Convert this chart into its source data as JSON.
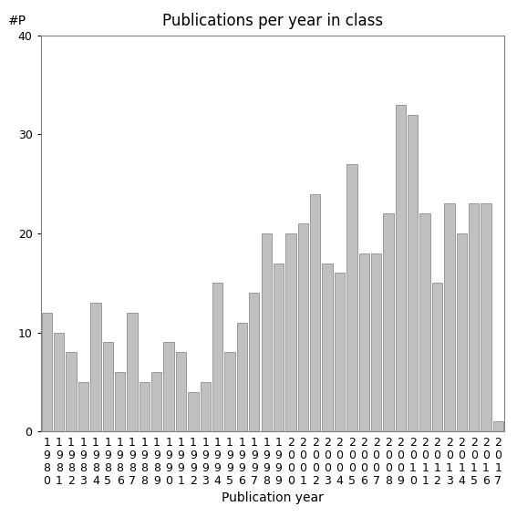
{
  "title": "Publications per year in class",
  "xlabel": "Publication year",
  "ylabel": "#P",
  "years": [
    "1980",
    "1981",
    "1982",
    "1983",
    "1984",
    "1985",
    "1986",
    "1987",
    "1988",
    "1989",
    "1990",
    "1991",
    "1992",
    "1993",
    "1994",
    "1995",
    "1996",
    "1997",
    "1998",
    "1999",
    "2000",
    "2001",
    "2002",
    "2003",
    "2004",
    "2005",
    "2006",
    "2007",
    "2008",
    "2009",
    "2010",
    "2011",
    "2012",
    "2013",
    "2014",
    "2015",
    "2016",
    "2017"
  ],
  "values": [
    12,
    10,
    8,
    5,
    13,
    9,
    6,
    12,
    5,
    6,
    9,
    8,
    4,
    5,
    15,
    8,
    11,
    14,
    20,
    17,
    20,
    21,
    24,
    17,
    16,
    27,
    18,
    18,
    22,
    33,
    32,
    22,
    15,
    23,
    20,
    23,
    23,
    1
  ],
  "bar_color": "#c0c0c0",
  "bar_edge_color": "#808080",
  "ylim": [
    0,
    40
  ],
  "yticks": [
    0,
    10,
    20,
    30,
    40
  ],
  "background_color": "#ffffff",
  "title_fontsize": 12,
  "axis_label_fontsize": 10,
  "tick_label_fontsize": 9
}
